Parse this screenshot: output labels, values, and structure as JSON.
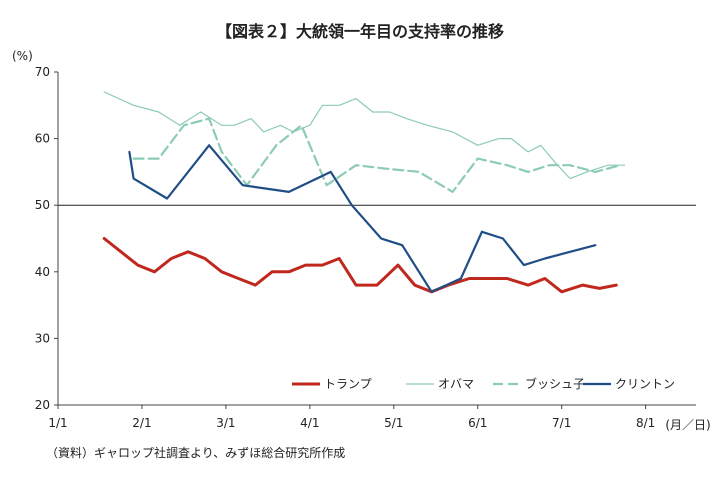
{
  "chart_data": {
    "type": "line",
    "title": "【図表２】大統領一年目の支持率の推移",
    "ylabel": "(%)",
    "xlabel": "(月／日)",
    "ylim": [
      20,
      70
    ],
    "yticks": [
      20,
      30,
      40,
      50,
      60,
      70
    ],
    "xlim": [
      0,
      7.6
    ],
    "x_tick_labels": [
      "1/1",
      "2/1",
      "3/1",
      "4/1",
      "5/1",
      "6/1",
      "7/1",
      "8/1"
    ],
    "reference_line": 50,
    "series": [
      {
        "name": "トランプ",
        "color": "#c0281e",
        "dash": "solid",
        "width": 3,
        "x": [
          0.55,
          0.75,
          0.95,
          1.15,
          1.35,
          1.55,
          1.75,
          1.95,
          2.15,
          2.35,
          2.55,
          2.75,
          2.95,
          3.15,
          3.35,
          3.55,
          3.8,
          4.05,
          4.25,
          4.45,
          4.65,
          4.9,
          5.1,
          5.35,
          5.6,
          5.8,
          6.0,
          6.25,
          6.45,
          6.65
        ],
        "values": [
          45,
          43,
          41,
          40,
          42,
          43,
          42,
          40,
          39,
          38,
          40,
          40,
          41,
          41,
          42,
          38,
          38,
          41,
          38,
          37,
          38,
          39,
          39,
          39,
          38,
          39,
          37,
          38,
          37.5,
          38
        ]
      },
      {
        "name": "オバマ",
        "color": "#8ccbb4",
        "dash": "solid",
        "width": 1.2,
        "x": [
          0.55,
          0.9,
          1.2,
          1.45,
          1.7,
          1.95,
          2.1,
          2.3,
          2.45,
          2.65,
          2.8,
          3.0,
          3.15,
          3.35,
          3.55,
          3.75,
          3.95,
          4.15,
          4.4,
          4.7,
          5.0,
          5.25,
          5.4,
          5.6,
          5.75,
          5.95,
          6.1,
          6.3,
          6.55,
          6.75
        ],
        "values": [
          67,
          65,
          64,
          62,
          64,
          62,
          62,
          63,
          61,
          62,
          61,
          62,
          65,
          65,
          66,
          64,
          64,
          63,
          62,
          61,
          59,
          60,
          60,
          58,
          59,
          56,
          54,
          55,
          56,
          56
        ]
      },
      {
        "name": "ブッシュ子",
        "color": "#8ccbb4",
        "dash": "10,5",
        "width": 2.2,
        "x": [
          0.9,
          1.2,
          1.5,
          1.8,
          1.95,
          2.25,
          2.6,
          2.9,
          3.2,
          3.55,
          3.9,
          4.3,
          4.7,
          5.0,
          5.35,
          5.6,
          5.85,
          6.1,
          6.4,
          6.7
        ],
        "values": [
          57,
          57,
          62,
          63,
          58,
          53,
          59,
          62,
          53,
          56,
          55.5,
          55,
          52,
          57,
          56,
          55,
          56,
          56,
          55,
          56
        ]
      },
      {
        "name": "クリントン",
        "color": "#1f4e86",
        "dash": "solid",
        "width": 2.2,
        "x": [
          0.85,
          0.9,
          1.3,
          1.8,
          2.2,
          2.75,
          3.25,
          3.5,
          3.85,
          4.1,
          4.45,
          4.8,
          5.05,
          5.3,
          5.55,
          5.8,
          6.1,
          6.4
        ],
        "values": [
          58,
          54,
          51,
          59,
          53,
          52,
          55,
          50,
          45,
          44,
          37,
          39,
          46,
          45,
          41,
          42,
          43,
          44
        ]
      }
    ]
  },
  "legend": {
    "items": [
      {
        "label": "トランプ",
        "color": "#c0281e",
        "dash": "solid",
        "width": 3
      },
      {
        "label": "オバマ",
        "color": "#8ccbb4",
        "dash": "solid",
        "width": 1.2
      },
      {
        "label": "ブッシュ子",
        "color": "#8ccbb4",
        "dash": "10,5",
        "width": 2.2
      },
      {
        "label": "クリントン",
        "color": "#1f4e86",
        "dash": "solid",
        "width": 2.2
      }
    ]
  },
  "source_note": "（資料）ギャロップ社調査より、みずほ総合研究所作成"
}
